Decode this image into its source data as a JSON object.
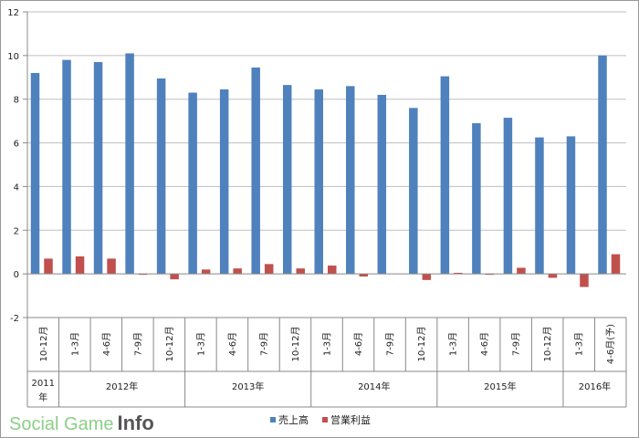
{
  "chart_data": {
    "type": "bar",
    "ylim": [
      -2,
      12
    ],
    "y_ticks": [
      "12",
      "10",
      "8",
      "6",
      "4",
      "2",
      "0",
      "-2"
    ],
    "grid": true,
    "legend_placement": "bottom",
    "categories": [
      "10-12月",
      "1-3月",
      "4-6月",
      "7-9月",
      "10-12月",
      "1-3月",
      "4-6月",
      "7-9月",
      "10-12月",
      "1-3月",
      "4-6月",
      "7-9月",
      "10-12月",
      "1-3月",
      "4-6月",
      "7-9月",
      "10-12月",
      "1-3月",
      "4-6月(予)"
    ],
    "years": [
      {
        "label": "2011年",
        "start": 0,
        "count": 1
      },
      {
        "label": "2012年",
        "start": 1,
        "count": 4
      },
      {
        "label": "2013年",
        "start": 5,
        "count": 4
      },
      {
        "label": "2014年",
        "start": 9,
        "count": 4
      },
      {
        "label": "2015年",
        "start": 13,
        "count": 4
      },
      {
        "label": "2016年",
        "start": 17,
        "count": 2
      }
    ],
    "series": [
      {
        "name": "売上高",
        "color": "#4f81bd",
        "values": [
          9.2,
          9.8,
          9.7,
          10.1,
          8.95,
          8.3,
          8.45,
          9.45,
          8.65,
          8.45,
          8.6,
          8.2,
          7.6,
          9.05,
          6.9,
          7.15,
          6.25,
          6.3,
          10.0
        ]
      },
      {
        "name": "営業利益",
        "color": "#c0504d",
        "values": [
          0.7,
          0.8,
          0.7,
          -0.03,
          -0.25,
          0.2,
          0.25,
          0.45,
          0.25,
          0.38,
          -0.12,
          0.0,
          -0.28,
          0.05,
          -0.03,
          0.28,
          -0.18,
          -0.6,
          0.9
        ]
      }
    ]
  },
  "brand": {
    "main": "Social Game",
    "accent": "Info"
  }
}
